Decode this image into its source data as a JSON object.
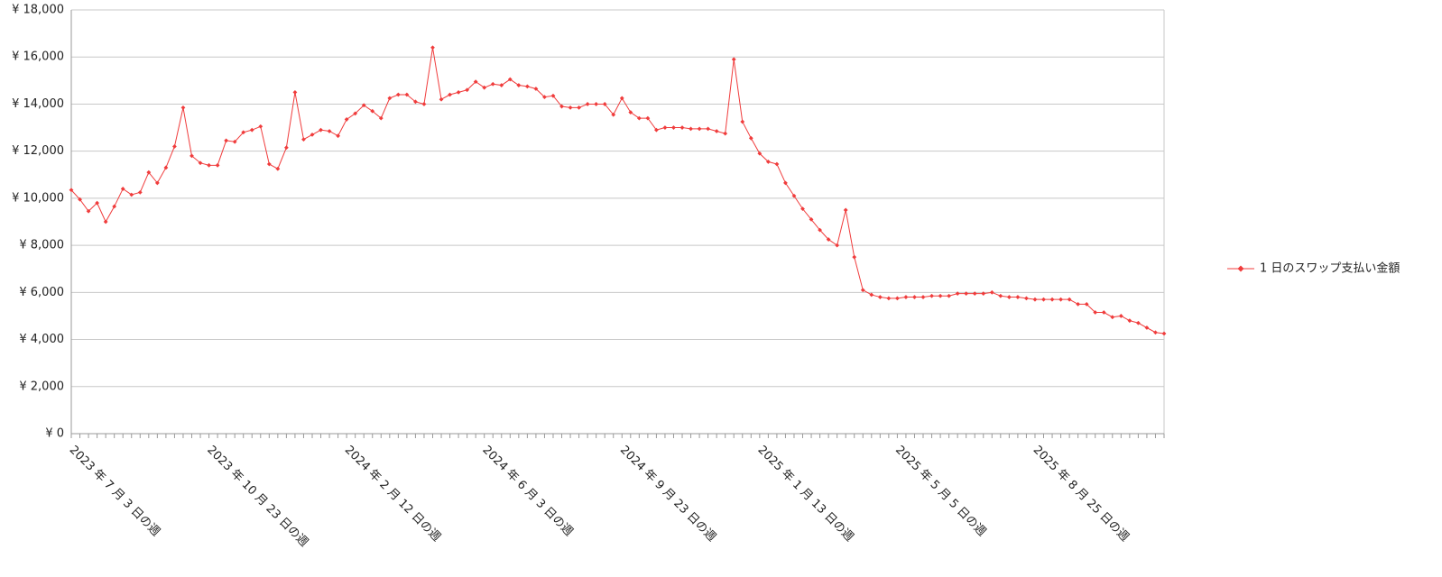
{
  "chart_data": {
    "type": "line",
    "categories": [
      "2023 年 7 月 3 日の週",
      null,
      null,
      null,
      null,
      null,
      null,
      null,
      null,
      null,
      null,
      null,
      null,
      null,
      null,
      null,
      "2023 年 10 月 23 日の週",
      null,
      null,
      null,
      null,
      null,
      null,
      null,
      null,
      null,
      null,
      null,
      null,
      null,
      null,
      null,
      "2024 年 2 月 12 日の週",
      null,
      null,
      null,
      null,
      null,
      null,
      null,
      null,
      null,
      null,
      null,
      null,
      null,
      null,
      null,
      "2024 年 6 月 3 日の週",
      null,
      null,
      null,
      null,
      null,
      null,
      null,
      null,
      null,
      null,
      null,
      null,
      null,
      null,
      null,
      "2024 年 9 月 23 日の週",
      null,
      null,
      null,
      null,
      null,
      null,
      null,
      null,
      null,
      null,
      null,
      null,
      null,
      null,
      null,
      "2025 年 1 月 13 日の週",
      null,
      null,
      null,
      null,
      null,
      null,
      null,
      null,
      null,
      null,
      null,
      null,
      null,
      null,
      null,
      "2025 年 5 月 5 日の週",
      null,
      null,
      null,
      null,
      null,
      null,
      null,
      null,
      null,
      null,
      null,
      null,
      null,
      null,
      null,
      "2025 年 8 月 25 日の週",
      null,
      null,
      null,
      null,
      null,
      null,
      null,
      null,
      null,
      null,
      null,
      null,
      null,
      null,
      null
    ],
    "series": [
      {
        "name": "1 日のスワップ支払い金額",
        "color": "#f03c3c",
        "values": [
          10350,
          9950,
          9450,
          9800,
          9000,
          9650,
          10400,
          10150,
          10250,
          11100,
          10650,
          11300,
          12200,
          13850,
          11800,
          11500,
          11400,
          11400,
          12450,
          12400,
          12800,
          12900,
          13050,
          11450,
          11250,
          12150,
          14500,
          12500,
          12700,
          12900,
          12850,
          12650,
          13350,
          13600,
          13950,
          13700,
          13400,
          14250,
          14400,
          14400,
          14100,
          14000,
          16400,
          14200,
          14400,
          14500,
          14600,
          14950,
          14700,
          14850,
          14800,
          15050,
          14800,
          14750,
          14650,
          14300,
          14350,
          13900,
          13850,
          13850,
          14000,
          14000,
          14000,
          13550,
          14250,
          13650,
          13400,
          13400,
          12900,
          13000,
          13000,
          13000,
          12950,
          12950,
          12950,
          12850,
          12750,
          15900,
          13250,
          12550,
          11900,
          11550,
          11450,
          10650,
          10100,
          9550,
          9100,
          8650,
          8250,
          8000,
          9500,
          7500,
          6100,
          5900,
          5800,
          5750,
          5750,
          5800,
          5800,
          5800,
          5850,
          5850,
          5850,
          5950,
          5950,
          5950,
          5950,
          6000,
          5850,
          5800,
          5800,
          5750,
          5700,
          5700,
          5700,
          5700,
          5700,
          5500,
          5500,
          5150,
          5150,
          4950,
          5000,
          4800,
          4700,
          4500,
          4300,
          4250
        ]
      }
    ],
    "ylim": [
      0,
      18000
    ],
    "yticks": [
      {
        "value": 0,
        "label": "¥ 0"
      },
      {
        "value": 2000,
        "label": "¥ 2,000"
      },
      {
        "value": 4000,
        "label": "¥ 4,000"
      },
      {
        "value": 6000,
        "label": "¥ 6,000"
      },
      {
        "value": 8000,
        "label": "¥ 8,000"
      },
      {
        "value": 10000,
        "label": "¥ 10,000"
      },
      {
        "value": 12000,
        "label": "¥ 12,000"
      },
      {
        "value": 14000,
        "label": "¥ 14,000"
      },
      {
        "value": 16000,
        "label": "¥ 16,000"
      },
      {
        "value": 18000,
        "label": "¥ 18,000"
      }
    ],
    "grid": true,
    "legend": "right"
  }
}
